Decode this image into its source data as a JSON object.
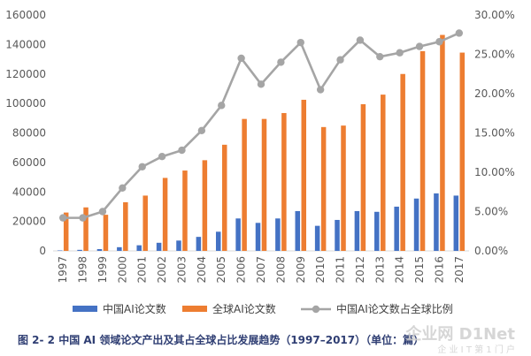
{
  "chart_data": {
    "type": "bar",
    "categories": [
      "1997",
      "1998",
      "1999",
      "2000",
      "2001",
      "2002",
      "2003",
      "2004",
      "2005",
      "2006",
      "2007",
      "2008",
      "2009",
      "2010",
      "2011",
      "2012",
      "2013",
      "2014",
      "2015",
      "2016",
      "2017"
    ],
    "series": [
      {
        "name": "中国AI论文数",
        "kind": "bar",
        "axis": "left",
        "color": "#4472c4",
        "values": [
          300,
          700,
          1200,
          2500,
          3800,
          5500,
          7000,
          9500,
          13000,
          22000,
          19000,
          22000,
          27000,
          17000,
          21000,
          27000,
          26500,
          30000,
          35500,
          39000,
          37500
        ]
      },
      {
        "name": "全球AI论文数",
        "kind": "bar",
        "axis": "left",
        "color": "#ed7d31",
        "values": [
          26000,
          29500,
          24500,
          33000,
          37500,
          49500,
          54500,
          61500,
          72000,
          89500,
          89500,
          93500,
          102500,
          84000,
          85000,
          99500,
          106000,
          120000,
          135500,
          146500,
          134500
        ]
      },
      {
        "name": "中国AI论文数占全球比例",
        "kind": "line",
        "axis": "right",
        "color": "#a5a5a5",
        "values": [
          0.042,
          0.042,
          0.05,
          0.08,
          0.107,
          0.12,
          0.128,
          0.153,
          0.185,
          0.245,
          0.212,
          0.24,
          0.265,
          0.205,
          0.243,
          0.268,
          0.247,
          0.252,
          0.26,
          0.266,
          0.277
        ]
      }
    ],
    "left_axis": {
      "min": 0,
      "max": 160000,
      "ticks": [
        "0",
        "20000",
        "40000",
        "60000",
        "80000",
        "100000",
        "120000",
        "140000",
        "160000"
      ]
    },
    "right_axis": {
      "min": 0,
      "max": 0.3,
      "ticks": [
        "0.00%",
        "5.00%",
        "10.00%",
        "15.00%",
        "20.00%",
        "25.00%",
        "30.00%"
      ]
    },
    "legend_position": "bottom",
    "grid": false
  },
  "caption": "图 2- 2  中国 AI 领域论文产出及其占全球占比发展趋势（1997–2017）（单位：篇）",
  "watermark": {
    "main": "企业网 D1Net",
    "sub": "企 业 I T 第 1 门 户"
  }
}
